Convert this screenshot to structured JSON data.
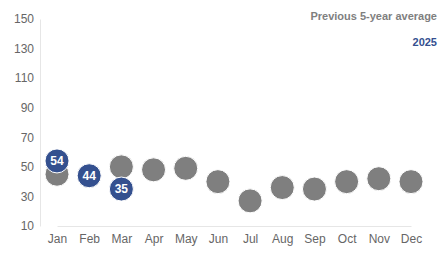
{
  "chart_data": {
    "type": "scatter",
    "categories": [
      "Jan",
      "Feb",
      "Mar",
      "Apr",
      "May",
      "Jun",
      "Jul",
      "Aug",
      "Sep",
      "Oct",
      "Nov",
      "Dec"
    ],
    "series": [
      {
        "name": "Previous 5-year average",
        "color": "#7f7f7f",
        "marker": "circle",
        "values": [
          45,
          44,
          50,
          48,
          49,
          40,
          27,
          36,
          35,
          40,
          42,
          40
        ]
      },
      {
        "name": "2025",
        "color": "#34508f",
        "marker": "circle",
        "data_labels": true,
        "values": [
          54,
          44,
          35,
          null,
          null,
          null,
          null,
          null,
          null,
          null,
          null,
          null
        ]
      }
    ],
    "ylim": [
      10,
      150
    ],
    "yticks": [
      10,
      30,
      50,
      70,
      90,
      110,
      130,
      150
    ],
    "grid": false,
    "legend": "top-right"
  }
}
